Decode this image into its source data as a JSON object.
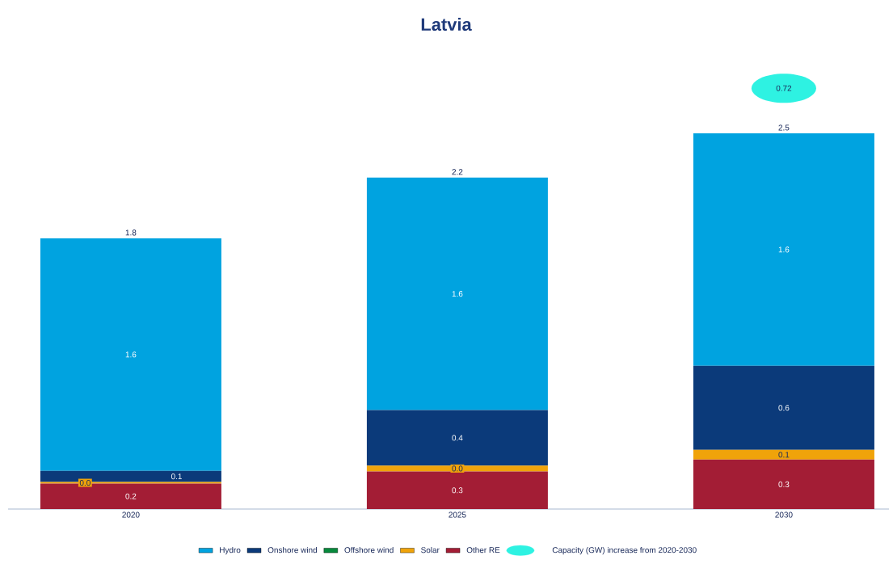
{
  "chart_data": {
    "type": "bar",
    "title": "Latvia",
    "categories": [
      "2020",
      "2025",
      "2030"
    ],
    "stacked": true,
    "tick_labels": "x",
    "legend": "bottom",
    "totals": [
      "1.8",
      "2.2",
      "2.5"
    ],
    "series": [
      {
        "name": "Other RE",
        "color": "#a31d35",
        "values": [
          0.17,
          0.25,
          0.33
        ],
        "value_labels": [
          "0.2",
          "0.3",
          "0.3"
        ]
      },
      {
        "name": "Solar",
        "color": "#f0a30a",
        "values": [
          0.01,
          0.04,
          0.065
        ],
        "value_labels": [
          "0.0",
          "0.0",
          "0.1"
        ]
      },
      {
        "name": "Offshore wind",
        "color": "#07893c",
        "values": [
          0,
          0,
          0
        ]
      },
      {
        "name": "Onshore wind",
        "color": "#0b3a7a",
        "values": [
          0.075,
          0.37,
          0.56
        ],
        "value_labels": [
          "0.1",
          "0.4",
          "0.6"
        ]
      },
      {
        "name": "Hydro",
        "color": "#00a3e0",
        "values": [
          1.55,
          1.55,
          1.55
        ],
        "value_labels": [
          "1.6",
          "1.6",
          "1.6"
        ]
      }
    ],
    "annotations": [
      "0.72",
      "Capacity (GW) increase from 2020-2030"
    ]
  }
}
